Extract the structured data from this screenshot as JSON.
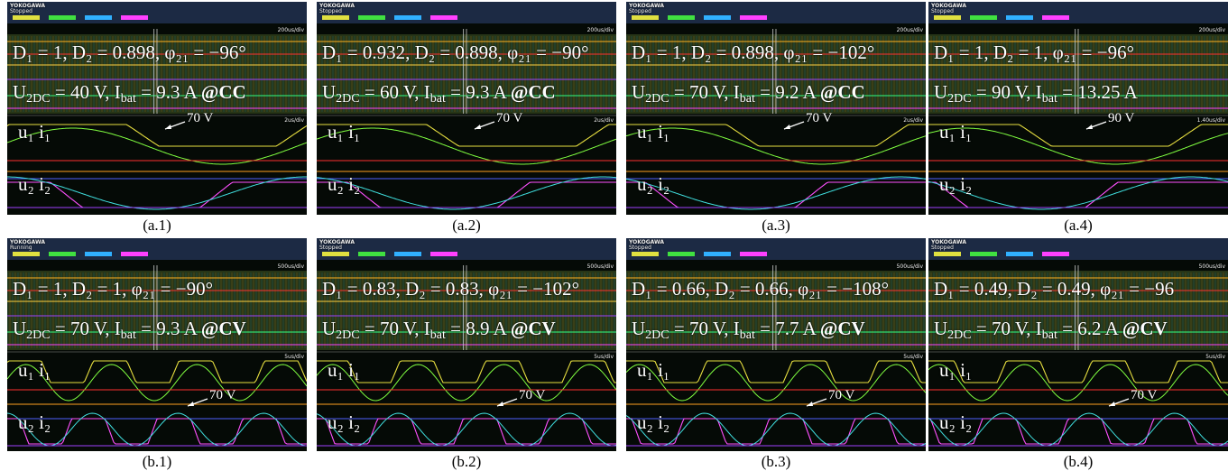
{
  "panels": [
    {
      "brand": "YOKOGAWA",
      "status": "Stopped",
      "timebase": "200us/div",
      "zoom_timebase": "2us/div",
      "line1": "D₁ = 1, D₂ = 0.898, φ₂₁ = −96°",
      "line2": [
        "U",
        {
          "sub": "2DC"
        },
        " = 40 V, I",
        {
          "sub": "bat"
        },
        " = 9.3 A ",
        {
          "bold": "@CC"
        }
      ],
      "upper": "u₁ i₁",
      "lower": "u₂ i₂",
      "annotation": "70 V",
      "caption": "(a.1)"
    },
    {
      "brand": "YOKOGAWA",
      "status": "Stopped",
      "timebase": "200us/div",
      "zoom_timebase": "2us/div",
      "line1": "D₁ = 0.932, D₂ = 0.898, φ₂₁ = −90°",
      "line2": [
        "U",
        {
          "sub": "2DC"
        },
        " = 60 V, I",
        {
          "sub": "bat"
        },
        " = 9.3 A ",
        {
          "bold": "@CC"
        }
      ],
      "upper": "u₁ i₁",
      "lower": "u₂ i₂",
      "annotation": "70 V",
      "caption": "(a.2)"
    },
    {
      "brand": "YOKOGAWA",
      "status": "Stopped",
      "timebase": "200us/div",
      "zoom_timebase": "2us/div",
      "line1": "D₁ = 1, D₂ = 0.898, φ₂₁ = −102°",
      "line2": [
        "U",
        {
          "sub": "2DC"
        },
        " = 70 V, I",
        {
          "sub": "bat"
        },
        " = 9.2 A ",
        {
          "bold": "@CC"
        }
      ],
      "upper": "u₁ i₁",
      "lower": "u₂ i₂",
      "annotation": "70 V",
      "caption": "(a.3)"
    },
    {
      "brand": "YOKOGAWA",
      "status": "Stopped",
      "timebase": "200us/div",
      "zoom_timebase": "1.40us/div",
      "line1": "D₁ = 1, D₂ = 1, φ₂₁ = −96°",
      "line2": [
        "U",
        {
          "sub": "2DC"
        },
        " = 90 V, I",
        {
          "sub": "bat"
        },
        " = 13.25 A"
      ],
      "upper": "u₁ i₁",
      "lower": "u₂ i₂",
      "annotation": "90 V",
      "caption": "(a.4)"
    },
    {
      "brand": "YOKOGAWA",
      "status": "Running",
      "timebase": "500us/div",
      "zoom_timebase": "5us/div",
      "line1": "D₁ = 1, D₂ = 1, φ₂₁ = −90°",
      "line2": [
        "U",
        {
          "sub": "2DC"
        },
        " = 70 V, I",
        {
          "sub": "bat"
        },
        " = 9.3 A ",
        {
          "bold": "@CV"
        }
      ],
      "upper": "u₁ i₁",
      "lower": "u₂ i₂",
      "annotation": "70 V",
      "caption": "(b.1)"
    },
    {
      "brand": "YOKOGAWA",
      "status": "Stopped",
      "timebase": "500us/div",
      "zoom_timebase": "5us/div",
      "line1": "D₁ = 0.83, D₂ = 0.83, φ₂₁ = −102°",
      "line2": [
        "U",
        {
          "sub": "2DC"
        },
        " = 70 V, I",
        {
          "sub": "bat"
        },
        " = 8.9 A ",
        {
          "bold": "@CV"
        }
      ],
      "upper": "u₁ i₁",
      "lower": "u₂ i₂",
      "annotation": "70 V",
      "caption": "(b.2)"
    },
    {
      "brand": "YOKOGAWA",
      "status": "Stopped",
      "timebase": "500us/div",
      "zoom_timebase": "5us/div",
      "line1": "D₁ = 0.66, D₂ = 0.66, φ₂₁ = −108°",
      "line2": [
        "U",
        {
          "sub": "2DC"
        },
        " = 70 V, I",
        {
          "sub": "bat"
        },
        " = 7.7 A ",
        {
          "bold": "@CV"
        }
      ],
      "upper": "u₁ i₁",
      "lower": "u₂ i₂",
      "annotation": "70 V",
      "caption": "(b.3)"
    },
    {
      "brand": "YOKOGAWA",
      "status": "Stopped",
      "timebase": "500us/div",
      "zoom_timebase": "5us/div",
      "line1": "D₁ = 0.49, D₂ = 0.49, φ₂₁ = −96",
      "line2": [
        "U",
        {
          "sub": "2DC"
        },
        " = 70 V, I",
        {
          "sub": "bat"
        },
        " = 6.2 A ",
        {
          "bold": "@CV"
        }
      ],
      "upper": "u₁ i₁",
      "lower": "u₂ i₂",
      "annotation": "70 V",
      "caption": "(b.4)"
    }
  ]
}
